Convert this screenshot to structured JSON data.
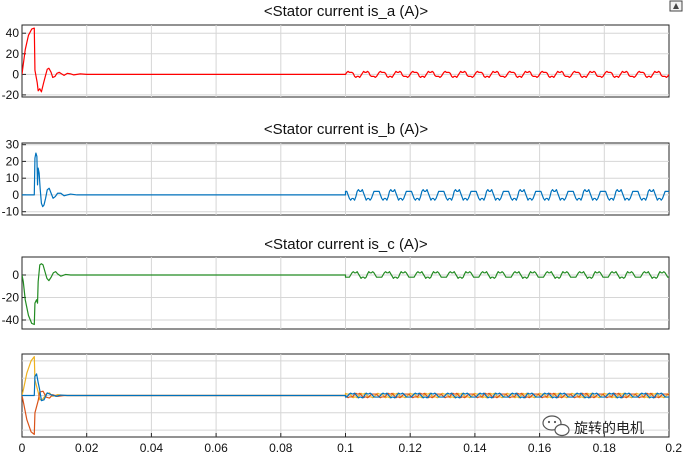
{
  "corner_icon_name": "autoscale-icon",
  "watermark": {
    "text": "旋转的电机",
    "icon_name": "wechat-icon"
  },
  "x_ticks": [
    "0",
    "0.02",
    "0.04",
    "0.06",
    "0.08",
    "0.1",
    "0.12",
    "0.14",
    "0.16",
    "0.18",
    "0.2"
  ],
  "chart_data": [
    {
      "type": "line",
      "title": "<Stator current is_a (A)>",
      "xlim": [
        0,
        0.2
      ],
      "ylim": [
        -22,
        48
      ],
      "yticks": [
        "40",
        "20",
        "0",
        "-20"
      ],
      "grid": true,
      "series": [
        {
          "color": "#ff0000",
          "points": [
            [
              0,
              0
            ],
            [
              0.0002,
              5
            ],
            [
              0.001,
              24
            ],
            [
              0.002,
              38
            ],
            [
              0.003,
              44
            ],
            [
              0.0038,
              45
            ],
            [
              0.004,
              4
            ],
            [
              0.0047,
              -8
            ],
            [
              0.005,
              -16
            ],
            [
              0.0055,
              -14
            ],
            [
              0.006,
              -17
            ],
            [
              0.0067,
              -8
            ],
            [
              0.0072,
              -2
            ],
            [
              0.0078,
              5
            ],
            [
              0.0083,
              6
            ],
            [
              0.009,
              2
            ],
            [
              0.0095,
              -3
            ],
            [
              0.0102,
              -2
            ],
            [
              0.0108,
              1
            ],
            [
              0.0115,
              2
            ],
            [
              0.012,
              1
            ],
            [
              0.013,
              -1
            ],
            [
              0.014,
              1
            ],
            [
              0.015,
              0.5
            ],
            [
              0.016,
              -0.5
            ],
            [
              0.018,
              0.5
            ],
            [
              0.02,
              0
            ],
            [
              0.1,
              0
            ]
          ],
          "oscillation": {
            "x_start": 0.1,
            "x_end": 0.2,
            "period": 0.005,
            "amplitude": 2.8,
            "offset": 0,
            "phase": 0
          }
        }
      ]
    },
    {
      "type": "line",
      "title": "<Stator current is_b (A)>",
      "xlim": [
        0,
        0.2
      ],
      "ylim": [
        -12,
        31
      ],
      "yticks": [
        "30",
        "20",
        "10",
        "0",
        "-10"
      ],
      "grid": true,
      "series": [
        {
          "color": "#0072bd",
          "points": [
            [
              0,
              0
            ],
            [
              0.0038,
              0
            ],
            [
              0.004,
              22
            ],
            [
              0.0043,
              25
            ],
            [
              0.0046,
              23
            ],
            [
              0.0048,
              6
            ],
            [
              0.005,
              16
            ],
            [
              0.0053,
              13
            ],
            [
              0.0056,
              4
            ],
            [
              0.006,
              -5
            ],
            [
              0.0064,
              -7
            ],
            [
              0.0068,
              -6
            ],
            [
              0.0073,
              -2
            ],
            [
              0.0078,
              3
            ],
            [
              0.0084,
              4
            ],
            [
              0.009,
              1
            ],
            [
              0.0096,
              -2
            ],
            [
              0.0103,
              -1
            ],
            [
              0.011,
              1
            ],
            [
              0.012,
              1
            ],
            [
              0.013,
              -0.5
            ],
            [
              0.015,
              0.5
            ],
            [
              0.017,
              0
            ],
            [
              0.1,
              0
            ]
          ],
          "oscillation": {
            "x_start": 0.1,
            "x_end": 0.2,
            "period": 0.005,
            "amplitude": 3.0,
            "offset": 0,
            "phase": 2.09
          }
        }
      ]
    },
    {
      "type": "line",
      "title": "<Stator current is_c (A)>",
      "xlim": [
        0,
        0.2
      ],
      "ylim": [
        -48,
        16
      ],
      "yticks": [
        "0",
        "-20",
        "-40"
      ],
      "grid": true,
      "series": [
        {
          "color": "#228b22",
          "points": [
            [
              0,
              0
            ],
            [
              0.0004,
              -6
            ],
            [
              0.001,
              -22
            ],
            [
              0.002,
              -36
            ],
            [
              0.003,
              -43
            ],
            [
              0.0038,
              -44
            ],
            [
              0.004,
              -25
            ],
            [
              0.0045,
              -22
            ],
            [
              0.0048,
              -25
            ],
            [
              0.005,
              -6
            ],
            [
              0.0055,
              9
            ],
            [
              0.006,
              10
            ],
            [
              0.0065,
              9
            ],
            [
              0.007,
              4
            ],
            [
              0.0077,
              -3
            ],
            [
              0.0083,
              -5
            ],
            [
              0.009,
              -2
            ],
            [
              0.0097,
              2
            ],
            [
              0.0104,
              3
            ],
            [
              0.011,
              1
            ],
            [
              0.012,
              -1
            ],
            [
              0.0135,
              0.5
            ],
            [
              0.015,
              0
            ],
            [
              0.1,
              0
            ]
          ],
          "oscillation": {
            "x_start": 0.1,
            "x_end": 0.2,
            "period": 0.005,
            "amplitude": 2.8,
            "offset": 0,
            "phase": 4.19
          }
        }
      ]
    },
    {
      "type": "line",
      "title": "",
      "xlim": [
        0,
        0.2
      ],
      "ylim": [
        -48,
        48
      ],
      "yticks": [],
      "grid": true,
      "series": [
        {
          "color": "#edb120",
          "points": [
            [
              0,
              0
            ],
            [
              0.0005,
              8
            ],
            [
              0.0015,
              26
            ],
            [
              0.0028,
              40
            ],
            [
              0.0038,
              45
            ],
            [
              0.004,
              18
            ],
            [
              0.005,
              4
            ],
            [
              0.0055,
              -5
            ],
            [
              0.0065,
              -4
            ],
            [
              0.0075,
              2
            ],
            [
              0.0085,
              3
            ],
            [
              0.0095,
              -1
            ],
            [
              0.011,
              1
            ],
            [
              0.013,
              0
            ],
            [
              0.1,
              0
            ]
          ],
          "oscillation": {
            "x_start": 0.1,
            "x_end": 0.2,
            "period": 0.005,
            "amplitude": 2.4,
            "offset": 0,
            "phase": 1.0
          }
        },
        {
          "color": "#d95319",
          "points": [
            [
              0,
              0
            ],
            [
              0.0005,
              -9
            ],
            [
              0.0015,
              -28
            ],
            [
              0.0028,
              -42
            ],
            [
              0.0038,
              -45
            ],
            [
              0.004,
              -20
            ],
            [
              0.005,
              -6
            ],
            [
              0.0055,
              4
            ],
            [
              0.0065,
              5
            ],
            [
              0.0075,
              -2
            ],
            [
              0.0085,
              -3
            ],
            [
              0.0095,
              1
            ],
            [
              0.011,
              -1
            ],
            [
              0.013,
              0
            ],
            [
              0.1,
              0
            ]
          ],
          "oscillation": {
            "x_start": 0.1,
            "x_end": 0.2,
            "period": 0.005,
            "amplitude": 2.4,
            "offset": 0,
            "phase": 3.1
          }
        },
        {
          "color": "#0072bd",
          "points": [
            [
              0,
              0
            ],
            [
              0.0038,
              0
            ],
            [
              0.004,
              22
            ],
            [
              0.0045,
              25
            ],
            [
              0.005,
              15
            ],
            [
              0.0055,
              6
            ],
            [
              0.006,
              -6
            ],
            [
              0.0068,
              -5
            ],
            [
              0.0078,
              3
            ],
            [
              0.009,
              1
            ],
            [
              0.0105,
              -1
            ],
            [
              0.012,
              0.5
            ],
            [
              0.014,
              0
            ],
            [
              0.1,
              0
            ]
          ],
          "oscillation": {
            "x_start": 0.1,
            "x_end": 0.2,
            "period": 0.005,
            "amplitude": 2.6,
            "offset": 0,
            "phase": 5.2
          }
        }
      ]
    }
  ]
}
